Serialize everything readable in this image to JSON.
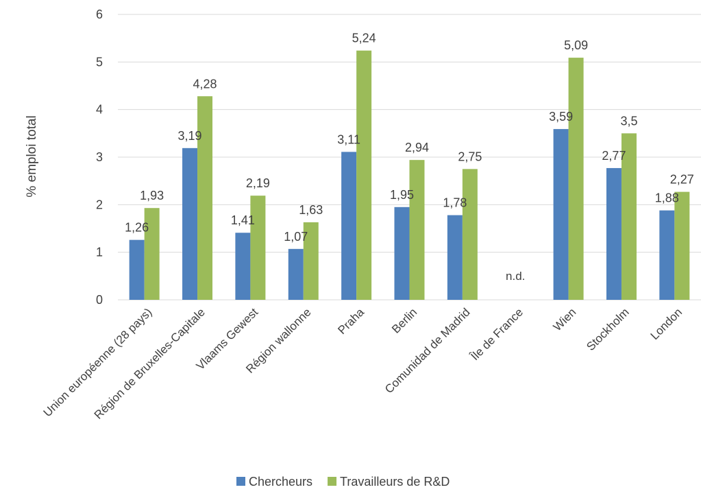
{
  "chart_data": {
    "type": "bar",
    "title": "",
    "xlabel": "",
    "ylabel": "% emploi total",
    "ylim": [
      0,
      6
    ],
    "yticks": [
      "0",
      "1",
      "2",
      "3",
      "4",
      "5",
      "6"
    ],
    "grid": true,
    "legend_position": "bottom",
    "categories": [
      "Union européenne (28 pays)",
      "Région de Bruxelles-Capitale",
      "Vlaams Gewest",
      "Région wallonne",
      "Praha",
      "Berlin",
      "Comunidad de Madrid",
      "Île de France",
      "Wien",
      "Stockholm",
      "London"
    ],
    "series": [
      {
        "name": "Chercheurs",
        "color": "#4f81bd",
        "values": [
          1.26,
          3.19,
          1.41,
          1.07,
          3.11,
          1.95,
          1.78,
          null,
          3.59,
          2.77,
          1.88
        ],
        "labels": [
          "1,26",
          "3,19",
          "1,41",
          "1,07",
          "3,11",
          "1,95",
          "1,78",
          "",
          "3,59",
          "2,77",
          "1,88"
        ]
      },
      {
        "name": "Travailleurs de R&D",
        "color": "#9bbb59",
        "values": [
          1.93,
          4.28,
          2.19,
          1.63,
          5.24,
          2.94,
          2.75,
          null,
          5.09,
          3.5,
          2.27
        ],
        "labels": [
          "1,93",
          "4,28",
          "2,19",
          "1,63",
          "5,24",
          "2,94",
          "2,75",
          "",
          "5,09",
          "3,5",
          "2,27"
        ]
      }
    ],
    "missing_note": "n.d."
  }
}
